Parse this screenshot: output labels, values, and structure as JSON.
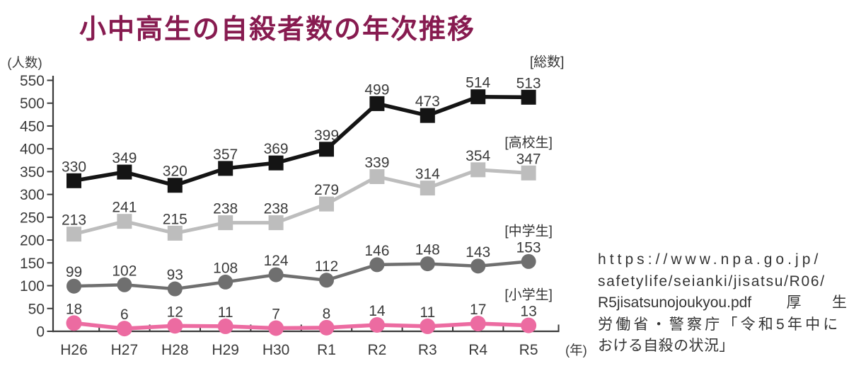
{
  "title": "小中高生の自殺者数の年次推移",
  "colors": {
    "title": "#871b50",
    "axis": "#3a3a3a",
    "value_label": "#3b3b3b",
    "source_text": "#333333"
  },
  "chart_data": {
    "type": "line",
    "title": "小中高生の自殺者数の年次推移",
    "xlabel": "",
    "ylabel": "(人数)",
    "x_unit_label": "(年)",
    "categories": [
      "H26",
      "H27",
      "H28",
      "H29",
      "H30",
      "R1",
      "R2",
      "R3",
      "R4",
      "R5"
    ],
    "ylim": [
      0,
      550
    ],
    "yticks": [
      0,
      50,
      100,
      150,
      200,
      250,
      300,
      350,
      400,
      450,
      500,
      550
    ],
    "grid": false,
    "legend_position": "inline-right-of-last-point",
    "series": [
      {
        "name": "[総数]",
        "slug": "total",
        "marker": "square",
        "color": "#141414",
        "values": [
          330,
          349,
          320,
          357,
          369,
          399,
          499,
          473,
          514,
          513
        ]
      },
      {
        "name": "[高校生]",
        "slug": "high-school",
        "marker": "square",
        "color": "#bdbdbd",
        "values": [
          213,
          241,
          215,
          238,
          238,
          279,
          339,
          314,
          354,
          347
        ]
      },
      {
        "name": "[中学生]",
        "slug": "junior-high",
        "marker": "circle",
        "color": "#6f6f6f",
        "values": [
          99,
          102,
          93,
          108,
          124,
          112,
          146,
          148,
          143,
          153
        ]
      },
      {
        "name": "[小学生]",
        "slug": "elementary",
        "marker": "circle",
        "color": "#ec6ba1",
        "values": [
          18,
          6,
          12,
          11,
          7,
          8,
          14,
          11,
          17,
          13
        ]
      }
    ]
  },
  "source": {
    "lines": [
      "https://www.npa.go.jp/",
      "safetylife/seianki/jisatsu/R06/",
      "R5jisatsunojoukyou.pdf 厚生",
      "労働省・警察庁「令和5年中に",
      "おける自殺の状況」"
    ]
  }
}
